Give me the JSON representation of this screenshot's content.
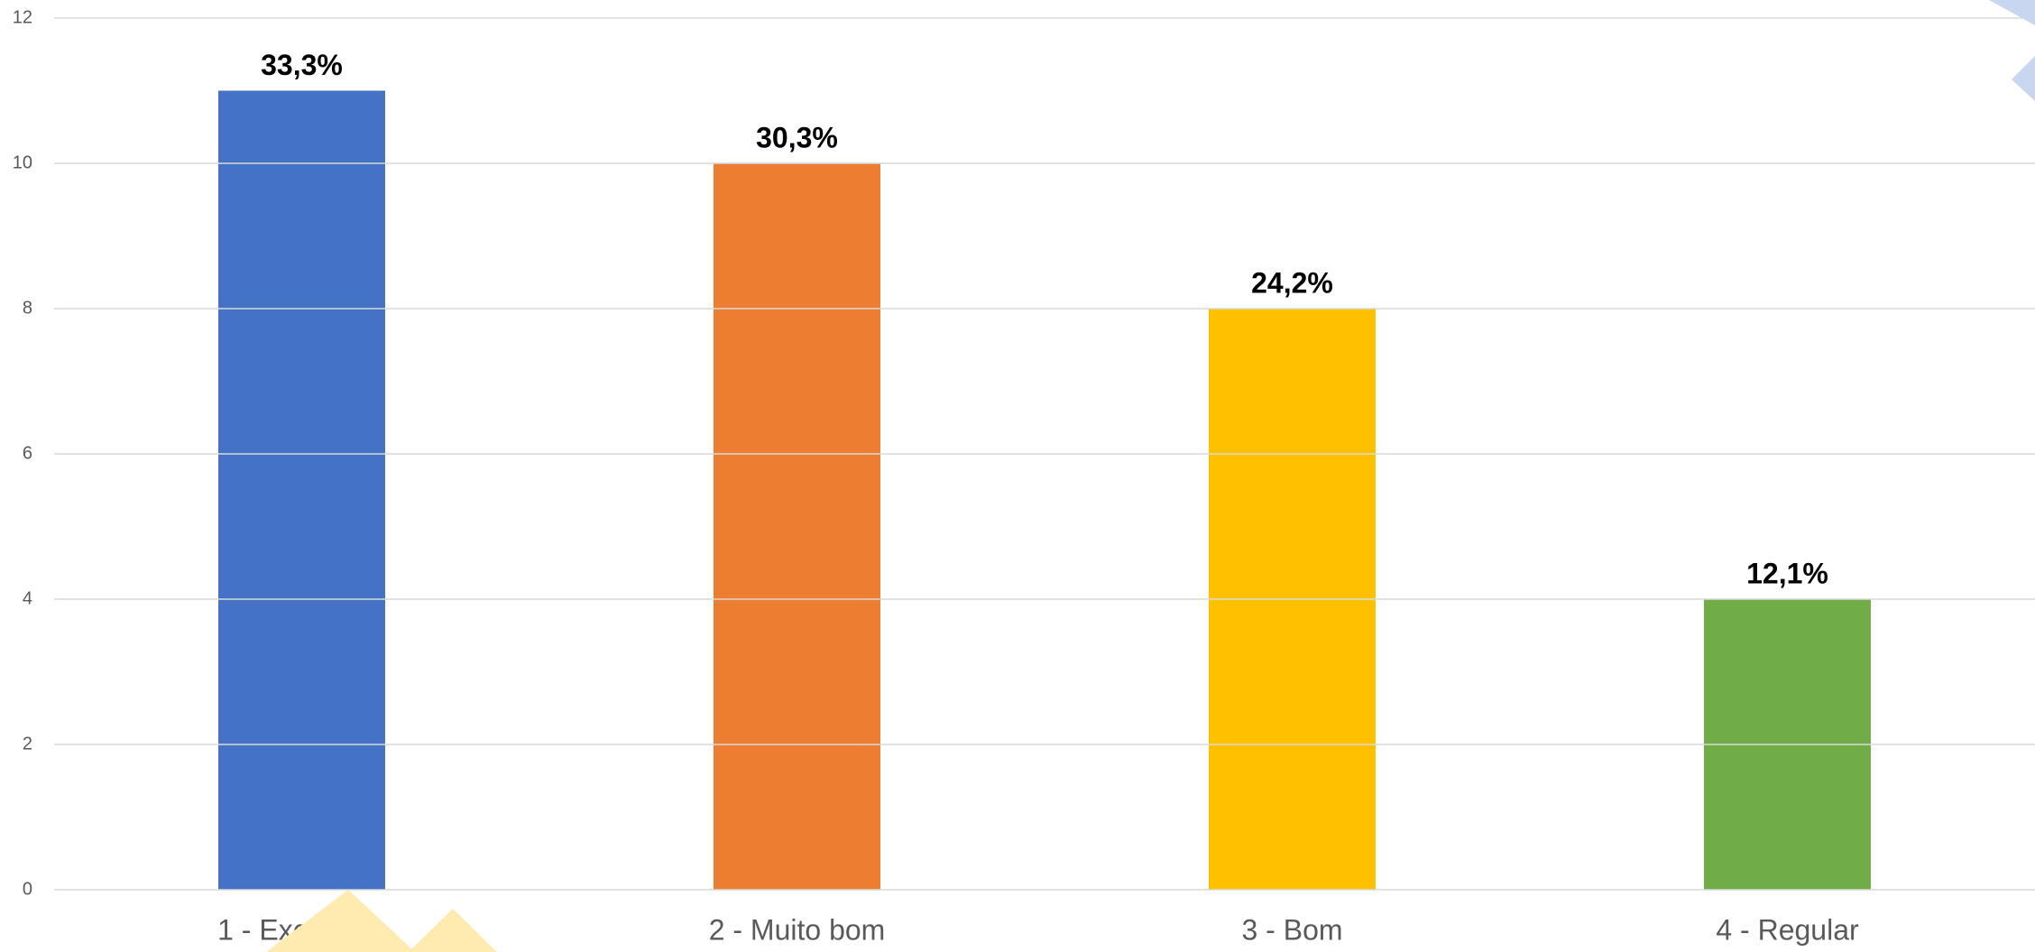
{
  "chart_data": {
    "type": "bar",
    "categories": [
      "1 - Excelente",
      "2 - Muito bom",
      "3 - Bom",
      "4 - Regular"
    ],
    "values": [
      11,
      10,
      8,
      4
    ],
    "annotations": [
      "33,3%",
      "30,3%",
      "24,2%",
      "12,1%"
    ],
    "colors": [
      "#4472c4",
      "#ed7d31",
      "#ffc000",
      "#70ad47"
    ],
    "ylim": [
      0,
      12
    ],
    "yticks": [
      0,
      2,
      4,
      6,
      8,
      10,
      12
    ],
    "grid": true
  }
}
